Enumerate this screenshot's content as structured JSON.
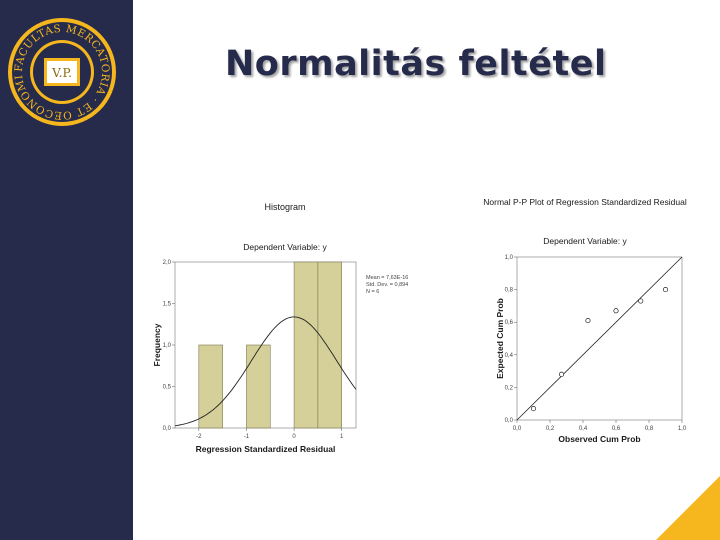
{
  "slide": {
    "title": "Normalitás feltétel",
    "colors": {
      "sidebar": "#262b4c",
      "accent": "#f5b71d",
      "bar": "#d5cf9a"
    }
  },
  "logo": {
    "ring_text": "FACULTAS MERCATORIA · ET OECONOMICA ·",
    "monogram": "V.P."
  },
  "chart_data": [
    {
      "type": "bar",
      "title": "Histogram",
      "subtitle": "Dependent Variable: y",
      "xlabel": "Regression Standardized Residual",
      "ylabel": "Frequency",
      "x_ticks": [
        "-2",
        "-1",
        "0",
        "1"
      ],
      "y_ticks": [
        "0,0",
        "0,5",
        "1,0",
        "1,5",
        "2,0"
      ],
      "xlim": [
        -2.5,
        1.3
      ],
      "ylim": [
        0,
        2.0
      ],
      "bins": [
        {
          "x0": -2.0,
          "x1": -1.5,
          "value": 1
        },
        {
          "x0": -1.0,
          "x1": -0.5,
          "value": 1
        },
        {
          "x0": 0.0,
          "x1": 0.5,
          "value": 2
        },
        {
          "x0": 0.5,
          "x1": 1.0,
          "value": 2
        }
      ],
      "curve": "normal",
      "stats": [
        "Mean = 7,63E-16",
        "Std. Dev. = 0,894",
        "N = 6"
      ],
      "grid": false
    },
    {
      "type": "scatter",
      "title": "Normal P-P Plot of Regression Standardized Residual",
      "subtitle": "Dependent Variable: y",
      "xlabel": "Observed Cum Prob",
      "ylabel": "Expected Cum Prob",
      "x_ticks": [
        "0,0",
        "0,2",
        "0,4",
        "0,6",
        "0,8",
        "1,0"
      ],
      "y_ticks": [
        "0,0",
        "0,2",
        "0,4",
        "0,6",
        "0,8",
        "1,0"
      ],
      "xlim": [
        0,
        1
      ],
      "ylim": [
        0,
        1
      ],
      "points": [
        {
          "x": 0.1,
          "y": 0.07
        },
        {
          "x": 0.27,
          "y": 0.28
        },
        {
          "x": 0.43,
          "y": 0.61
        },
        {
          "x": 0.6,
          "y": 0.67
        },
        {
          "x": 0.75,
          "y": 0.73
        },
        {
          "x": 0.9,
          "y": 0.8
        }
      ],
      "reference_line": [
        [
          0,
          0
        ],
        [
          1,
          1
        ]
      ],
      "grid": false
    }
  ]
}
